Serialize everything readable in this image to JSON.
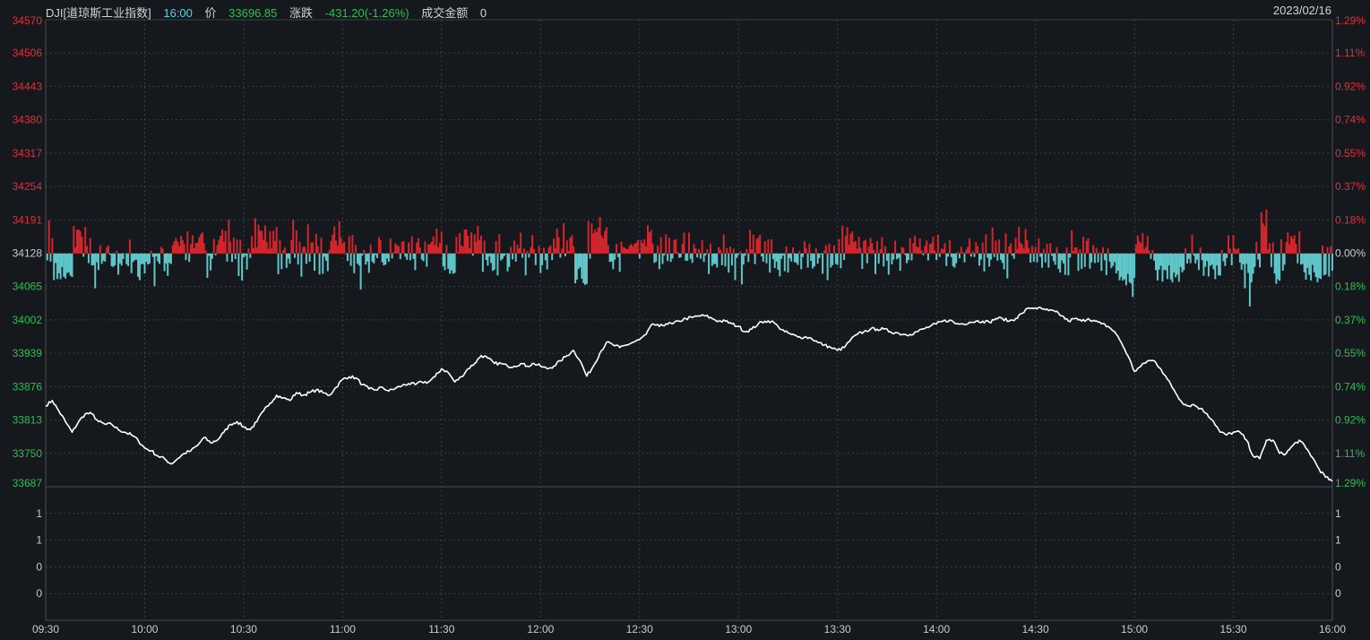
{
  "header": {
    "symbol": "DJI[道琼斯工业指数]",
    "time": "16:00",
    "price_label": "价",
    "price": "33696.85",
    "change_label": "涨跌",
    "change": "-431.20(-1.26%)",
    "turnover_label": "成交金额",
    "turnover": "0",
    "date": "2023/02/16"
  },
  "colors": {
    "background": "#15181d",
    "up": "#d4252c",
    "down": "#5fc7c9",
    "line": "#ffffff",
    "grid": "#3a3e46",
    "axis_up_text": "#e0303a",
    "axis_down_text": "#2fbf52",
    "axis_neutral_text": "#c8ccd2"
  },
  "chart_data": {
    "type": "line",
    "prev_close": 34128,
    "y_ticks": [
      "34570",
      "34506",
      "34443",
      "34380",
      "34317",
      "34254",
      "34191",
      "34128",
      "34065",
      "34002",
      "33939",
      "33876",
      "33813",
      "33750",
      "33687"
    ],
    "pct_ticks": [
      "1.29%",
      "1.11%",
      "0.92%",
      "0.74%",
      "0.55%",
      "0.37%",
      "0.18%",
      "0.00%",
      "0.18%",
      "0.37%",
      "0.55%",
      "0.74%",
      "0.92%",
      "1.11%",
      "1.29%"
    ],
    "ylim": [
      33687,
      34570
    ],
    "x_ticks": [
      "09:30",
      "10:00",
      "10:30",
      "11:00",
      "11:30",
      "12:00",
      "12:30",
      "13:00",
      "13:30",
      "14:00",
      "14:30",
      "15:00",
      "15:30",
      "16:00"
    ],
    "price_points": [
      [
        "09:30",
        33840
      ],
      [
        "09:32",
        33850
      ],
      [
        "09:34",
        33830
      ],
      [
        "09:36",
        33810
      ],
      [
        "09:38",
        33790
      ],
      [
        "09:40",
        33810
      ],
      [
        "09:42",
        33825
      ],
      [
        "09:44",
        33825
      ],
      [
        "09:46",
        33810
      ],
      [
        "09:48",
        33805
      ],
      [
        "09:50",
        33805
      ],
      [
        "09:52",
        33795
      ],
      [
        "09:54",
        33790
      ],
      [
        "09:56",
        33785
      ],
      [
        "09:58",
        33775
      ],
      [
        "10:00",
        33760
      ],
      [
        "10:02",
        33755
      ],
      [
        "10:04",
        33745
      ],
      [
        "10:06",
        33740
      ],
      [
        "10:08",
        33730
      ],
      [
        "10:10",
        33740
      ],
      [
        "10:12",
        33750
      ],
      [
        "10:14",
        33755
      ],
      [
        "10:16",
        33765
      ],
      [
        "10:18",
        33780
      ],
      [
        "10:20",
        33770
      ],
      [
        "10:22",
        33775
      ],
      [
        "10:24",
        33790
      ],
      [
        "10:26",
        33805
      ],
      [
        "10:28",
        33810
      ],
      [
        "10:30",
        33800
      ],
      [
        "10:32",
        33795
      ],
      [
        "10:34",
        33810
      ],
      [
        "10:36",
        33830
      ],
      [
        "10:38",
        33845
      ],
      [
        "10:40",
        33860
      ],
      [
        "10:42",
        33855
      ],
      [
        "10:44",
        33850
      ],
      [
        "10:46",
        33865
      ],
      [
        "10:48",
        33860
      ],
      [
        "10:50",
        33865
      ],
      [
        "10:52",
        33870
      ],
      [
        "10:54",
        33865
      ],
      [
        "10:56",
        33860
      ],
      [
        "10:58",
        33875
      ],
      [
        "11:00",
        33890
      ],
      [
        "11:02",
        33895
      ],
      [
        "11:04",
        33893
      ],
      [
        "11:06",
        33880
      ],
      [
        "11:08",
        33872
      ],
      [
        "11:10",
        33870
      ],
      [
        "11:12",
        33875
      ],
      [
        "11:14",
        33868
      ],
      [
        "11:16",
        33873
      ],
      [
        "11:18",
        33878
      ],
      [
        "11:20",
        33882
      ],
      [
        "11:22",
        33880
      ],
      [
        "11:24",
        33885
      ],
      [
        "11:26",
        33885
      ],
      [
        "11:28",
        33895
      ],
      [
        "11:30",
        33910
      ],
      [
        "11:32",
        33903
      ],
      [
        "11:34",
        33885
      ],
      [
        "11:36",
        33895
      ],
      [
        "11:38",
        33910
      ],
      [
        "11:40",
        33920
      ],
      [
        "11:42",
        33935
      ],
      [
        "11:44",
        33930
      ],
      [
        "11:46",
        33920
      ],
      [
        "11:48",
        33920
      ],
      [
        "11:50",
        33915
      ],
      [
        "11:52",
        33915
      ],
      [
        "11:54",
        33920
      ],
      [
        "11:56",
        33915
      ],
      [
        "11:58",
        33920
      ],
      [
        "12:00",
        33915
      ],
      [
        "12:02",
        33910
      ],
      [
        "12:04",
        33915
      ],
      [
        "12:06",
        33925
      ],
      [
        "12:08",
        33935
      ],
      [
        "12:10",
        33945
      ],
      [
        "12:12",
        33925
      ],
      [
        "12:14",
        33896
      ],
      [
        "12:16",
        33915
      ],
      [
        "12:18",
        33940
      ],
      [
        "12:20",
        33960
      ],
      [
        "12:22",
        33955
      ],
      [
        "12:24",
        33950
      ],
      [
        "12:26",
        33955
      ],
      [
        "12:28",
        33960
      ],
      [
        "12:30",
        33965
      ],
      [
        "12:32",
        33975
      ],
      [
        "12:34",
        33995
      ],
      [
        "12:36",
        33990
      ],
      [
        "12:38",
        33995
      ],
      [
        "12:40",
        33995
      ],
      [
        "12:42",
        34000
      ],
      [
        "12:44",
        34005
      ],
      [
        "12:46",
        34007
      ],
      [
        "12:48",
        34010
      ],
      [
        "12:50",
        34010
      ],
      [
        "12:52",
        34005
      ],
      [
        "12:54",
        34000
      ],
      [
        "12:56",
        34000
      ],
      [
        "12:58",
        33995
      ],
      [
        "13:00",
        33990
      ],
      [
        "13:02",
        33980
      ],
      [
        "13:04",
        33985
      ],
      [
        "13:06",
        33995
      ],
      [
        "13:08",
        34000
      ],
      [
        "13:10",
        34000
      ],
      [
        "13:12",
        33990
      ],
      [
        "13:14",
        33980
      ],
      [
        "13:16",
        33975
      ],
      [
        "13:18",
        33970
      ],
      [
        "13:20",
        33970
      ],
      [
        "13:22",
        33968
      ],
      [
        "13:24",
        33960
      ],
      [
        "13:26",
        33955
      ],
      [
        "13:28",
        33950
      ],
      [
        "13:30",
        33945
      ],
      [
        "13:32",
        33950
      ],
      [
        "13:34",
        33965
      ],
      [
        "13:36",
        33975
      ],
      [
        "13:38",
        33980
      ],
      [
        "13:40",
        33985
      ],
      [
        "13:42",
        33985
      ],
      [
        "13:44",
        33985
      ],
      [
        "13:46",
        33980
      ],
      [
        "13:48",
        33978
      ],
      [
        "13:50",
        33975
      ],
      [
        "13:52",
        33975
      ],
      [
        "13:54",
        33980
      ],
      [
        "13:56",
        33985
      ],
      [
        "13:58",
        33990
      ],
      [
        "14:00",
        33995
      ],
      [
        "14:02",
        34000
      ],
      [
        "14:04",
        34002
      ],
      [
        "14:06",
        33995
      ],
      [
        "14:08",
        33995
      ],
      [
        "14:10",
        33998
      ],
      [
        "14:12",
        34000
      ],
      [
        "14:14",
        34000
      ],
      [
        "14:16",
        33998
      ],
      [
        "14:18",
        34005
      ],
      [
        "14:20",
        34005
      ],
      [
        "14:22",
        34000
      ],
      [
        "14:24",
        34005
      ],
      [
        "14:26",
        34015
      ],
      [
        "14:28",
        34025
      ],
      [
        "14:30",
        34025
      ],
      [
        "14:32",
        34023
      ],
      [
        "14:34",
        34020
      ],
      [
        "14:36",
        34018
      ],
      [
        "14:38",
        34010
      ],
      [
        "14:40",
        34000
      ],
      [
        "14:42",
        34005
      ],
      [
        "14:44",
        34000
      ],
      [
        "14:46",
        34005
      ],
      [
        "14:48",
        34000
      ],
      [
        "14:50",
        33995
      ],
      [
        "14:52",
        33990
      ],
      [
        "14:54",
        33980
      ],
      [
        "14:56",
        33960
      ],
      [
        "14:58",
        33935
      ],
      [
        "15:00",
        33905
      ],
      [
        "15:02",
        33915
      ],
      [
        "15:04",
        33925
      ],
      [
        "15:06",
        33925
      ],
      [
        "15:08",
        33910
      ],
      [
        "15:10",
        33890
      ],
      [
        "15:12",
        33870
      ],
      [
        "15:14",
        33850
      ],
      [
        "15:16",
        33840
      ],
      [
        "15:18",
        33842
      ],
      [
        "15:20",
        33835
      ],
      [
        "15:22",
        33825
      ],
      [
        "15:24",
        33810
      ],
      [
        "15:26",
        33790
      ],
      [
        "15:28",
        33785
      ],
      [
        "15:30",
        33790
      ],
      [
        "15:32",
        33790
      ],
      [
        "15:34",
        33775
      ],
      [
        "15:36",
        33745
      ],
      [
        "15:38",
        33740
      ],
      [
        "15:40",
        33775
      ],
      [
        "15:42",
        33775
      ],
      [
        "15:44",
        33750
      ],
      [
        "15:46",
        33750
      ],
      [
        "15:48",
        33765
      ],
      [
        "15:50",
        33775
      ],
      [
        "15:52",
        33760
      ],
      [
        "15:54",
        33742
      ],
      [
        "15:56",
        33720
      ],
      [
        "15:58",
        33705
      ],
      [
        "16:00",
        33697
      ]
    ],
    "vol_ticks": [
      "1",
      "1",
      "0",
      "0"
    ],
    "volume_panel_ticks": 4
  }
}
